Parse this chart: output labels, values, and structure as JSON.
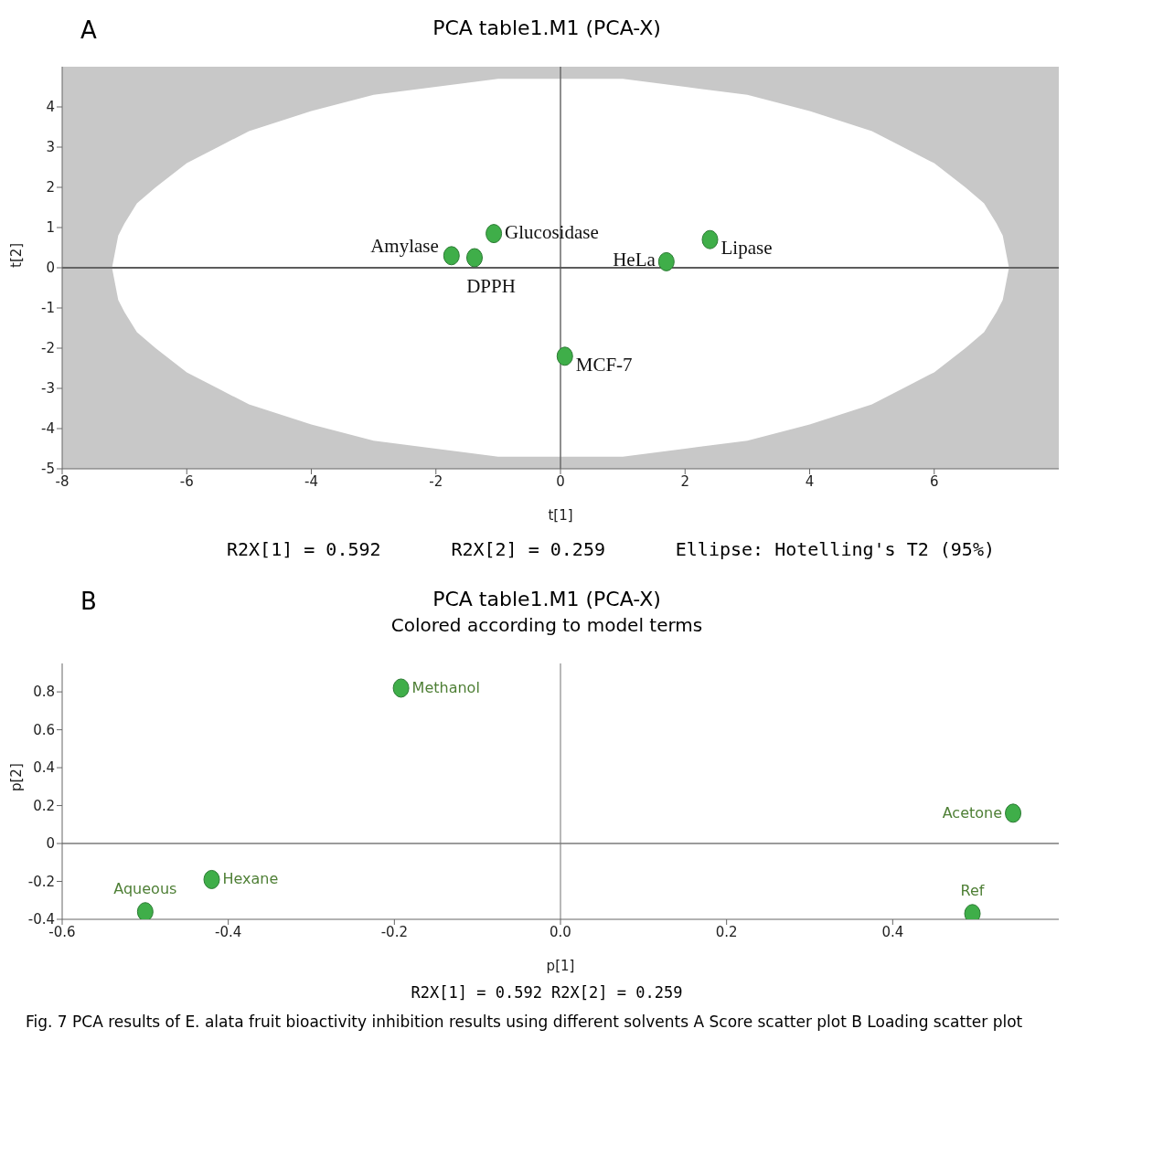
{
  "chart_data": [
    {
      "type": "scatter",
      "title": "PCA table1.M1 (PCA-X)",
      "xlabel": "t[1]",
      "ylabel": "t[2]",
      "annotations": [
        "A",
        "R2X[1] = 0.592",
        "R2X[2] = 0.259",
        "Ellipse: Hotelling's T2 (95%)"
      ],
      "series": [
        {
          "name": "Amylase",
          "color": "#3fae49",
          "x": [
            -1.75
          ],
          "values": [
            0.3
          ]
        },
        {
          "name": "DPPH",
          "color": "#3fae49",
          "x": [
            -1.38
          ],
          "values": [
            0.25
          ]
        },
        {
          "name": "Glucosidase",
          "color": "#3fae49",
          "x": [
            -1.07
          ],
          "values": [
            0.85
          ]
        },
        {
          "name": "HeLa",
          "color": "#3fae49",
          "x": [
            1.7
          ],
          "values": [
            0.15
          ]
        },
        {
          "name": "Lipase",
          "color": "#3fae49",
          "x": [
            2.4
          ],
          "values": [
            0.7
          ]
        },
        {
          "name": "MCF-7",
          "color": "#3fae49",
          "x": [
            0.07
          ],
          "values": [
            -2.2
          ]
        },
        {
          "type": "line",
          "marker": "none",
          "color": "#555555",
          "x": [
            -7.2,
            -7.1,
            -7,
            -6.8,
            -6.5,
            -6,
            -5.5,
            -5,
            -4,
            -3,
            -2,
            -1,
            0,
            1,
            2,
            3,
            4,
            5,
            5.5,
            6,
            6.5,
            6.8,
            7,
            7.1,
            7.2
          ],
          "values": [
            0,
            0,
            0,
            0,
            0,
            0,
            0,
            0,
            0,
            0,
            0,
            0,
            0,
            0,
            0,
            0,
            0,
            0,
            0,
            0,
            0,
            0,
            0,
            0,
            0
          ],
          "lower": [
            0,
            -0.8,
            -1.1,
            -1.6,
            -2.0,
            -2.6,
            -3.0,
            -3.4,
            -3.9,
            -4.3,
            -4.5,
            -4.7,
            -4.7,
            -4.7,
            -4.5,
            -4.3,
            -3.9,
            -3.4,
            -3.0,
            -2.6,
            -2.0,
            -1.6,
            -1.1,
            -0.8,
            0
          ],
          "upper": [
            0,
            0.8,
            1.1,
            1.6,
            2.0,
            2.6,
            3.0,
            3.4,
            3.9,
            4.3,
            4.5,
            4.7,
            4.7,
            4.7,
            4.5,
            4.3,
            3.9,
            3.4,
            3.0,
            2.6,
            2.0,
            1.6,
            1.1,
            0.8,
            0
          ]
        }
      ],
      "xlim": [
        -8,
        8
      ],
      "xticks": [
        -8,
        -6,
        -4,
        -2,
        0,
        2,
        4,
        6
      ],
      "ylim": [
        -5,
        5
      ],
      "yticks": [
        -5,
        -4,
        -3,
        -2,
        -1,
        0,
        1,
        2,
        3,
        4
      ],
      "ref_lines": [
        {
          "axis": "x",
          "value": 0,
          "color": "#6a6a6a"
        },
        {
          "axis": "y",
          "value": 0,
          "color": "#444444"
        }
      ],
      "marker": "circle",
      "grid": false
    },
    {
      "type": "scatter",
      "title": "PCA table1.M1 (PCA-X)",
      "subtitle": "Colored according to model terms",
      "xlabel": "p[1]",
      "ylabel": "p[2]",
      "annotations": [
        "B",
        "R2X[1] = 0.592 R2X[2] = 0.259",
        "Fig. 7  PCA results of E. alata fruit bioactivity inhibition results using different solvents A Score scatter plot B Loading scatter plot"
      ],
      "series": [
        {
          "name": "Methanol",
          "color": "#3fae49",
          "x": [
            -0.192
          ],
          "values": [
            0.82
          ]
        },
        {
          "name": "Acetone",
          "color": "#3fae49",
          "x": [
            0.545
          ],
          "values": [
            0.16
          ]
        },
        {
          "name": "Hexane",
          "color": "#3fae49",
          "x": [
            -0.42
          ],
          "values": [
            -0.19
          ]
        },
        {
          "name": "Aqueous",
          "color": "#3fae49",
          "x": [
            -0.5
          ],
          "values": [
            -0.36
          ]
        },
        {
          "name": "Ref",
          "color": "#3fae49",
          "x": [
            0.496
          ],
          "values": [
            -0.37
          ]
        }
      ],
      "xlim": [
        -0.6,
        0.6
      ],
      "xticks": [
        -0.6,
        -0.4,
        -0.2,
        {
          "value": 0,
          "label": "0.0"
        },
        0.2,
        0.4
      ],
      "ylim": [
        -0.4,
        0.95
      ],
      "yticks": [
        -0.4,
        -0.2,
        0,
        0.2,
        0.4,
        0.6,
        0.8
      ],
      "ref_lines": [
        {
          "axis": "x",
          "value": 0,
          "color": "#a0a0a0"
        },
        {
          "axis": "y",
          "value": 0,
          "color": "#7a7a7a"
        }
      ],
      "marker": "circle",
      "grid": false
    }
  ]
}
